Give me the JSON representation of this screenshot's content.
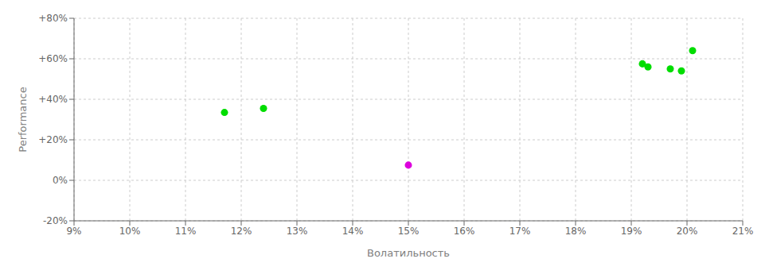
{
  "chart_data": {
    "type": "scatter",
    "xlabel": "Волатильность",
    "ylabel": "Performance",
    "xlim": [
      0.09,
      0.21
    ],
    "ylim": [
      -0.2,
      0.8
    ],
    "xticks": [
      {
        "value": 0.09,
        "label": "9%"
      },
      {
        "value": 0.1,
        "label": "10%"
      },
      {
        "value": 0.11,
        "label": "11%"
      },
      {
        "value": 0.12,
        "label": "12%"
      },
      {
        "value": 0.13,
        "label": "13%"
      },
      {
        "value": 0.14,
        "label": "14%"
      },
      {
        "value": 0.15,
        "label": "15%"
      },
      {
        "value": 0.16,
        "label": "16%"
      },
      {
        "value": 0.17,
        "label": "17%"
      },
      {
        "value": 0.18,
        "label": "18%"
      },
      {
        "value": 0.19,
        "label": "19%"
      },
      {
        "value": 0.2,
        "label": "20%"
      },
      {
        "value": 0.21,
        "label": "21%"
      }
    ],
    "yticks": [
      {
        "value": -0.2,
        "label": "-20%"
      },
      {
        "value": 0.0,
        "label": "0%"
      },
      {
        "value": 0.2,
        "label": "+20%"
      },
      {
        "value": 0.4,
        "label": "+40%"
      },
      {
        "value": 0.6,
        "label": "+60%"
      },
      {
        "value": 0.8,
        "label": "+80%"
      }
    ],
    "grid": true,
    "series": [
      {
        "color": "#00dd00",
        "x": [
          0.117,
          0.124,
          0.192,
          0.193,
          0.197,
          0.199,
          0.201
        ],
        "values": [
          0.335,
          0.355,
          0.575,
          0.56,
          0.55,
          0.54,
          0.64
        ]
      },
      {
        "color": "#dd00dd",
        "x": [
          0.15
        ],
        "values": [
          0.075
        ]
      }
    ]
  }
}
